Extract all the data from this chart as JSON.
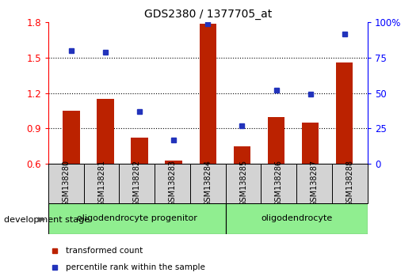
{
  "title": "GDS2380 / 1377705_at",
  "samples": [
    "GSM138280",
    "GSM138281",
    "GSM138282",
    "GSM138283",
    "GSM138284",
    "GSM138285",
    "GSM138286",
    "GSM138287",
    "GSM138288"
  ],
  "transformed_count": [
    1.05,
    1.15,
    0.82,
    0.63,
    1.79,
    0.75,
    1.0,
    0.95,
    1.46
  ],
  "percentile_rank": [
    80,
    79,
    37,
    17,
    99,
    27,
    52,
    49,
    92
  ],
  "groups": [
    {
      "label": "oligodendrocyte progenitor",
      "start": 0,
      "end": 4
    },
    {
      "label": "oligodendrocyte",
      "start": 5,
      "end": 8
    }
  ],
  "bar_color": "#bb2200",
  "dot_color": "#2233bb",
  "ylim_left": [
    0.6,
    1.8
  ],
  "ylim_right": [
    0,
    100
  ],
  "yticks_left": [
    0.6,
    0.9,
    1.2,
    1.5,
    1.8
  ],
  "yticks_right": [
    0,
    25,
    50,
    75,
    100
  ],
  "grid_lines": [
    0.9,
    1.2,
    1.5
  ],
  "group_color": "#90ee90",
  "bar_width": 0.5,
  "legend_items": [
    {
      "label": "transformed count",
      "color": "#bb2200"
    },
    {
      "label": "percentile rank within the sample",
      "color": "#2233bb"
    }
  ]
}
